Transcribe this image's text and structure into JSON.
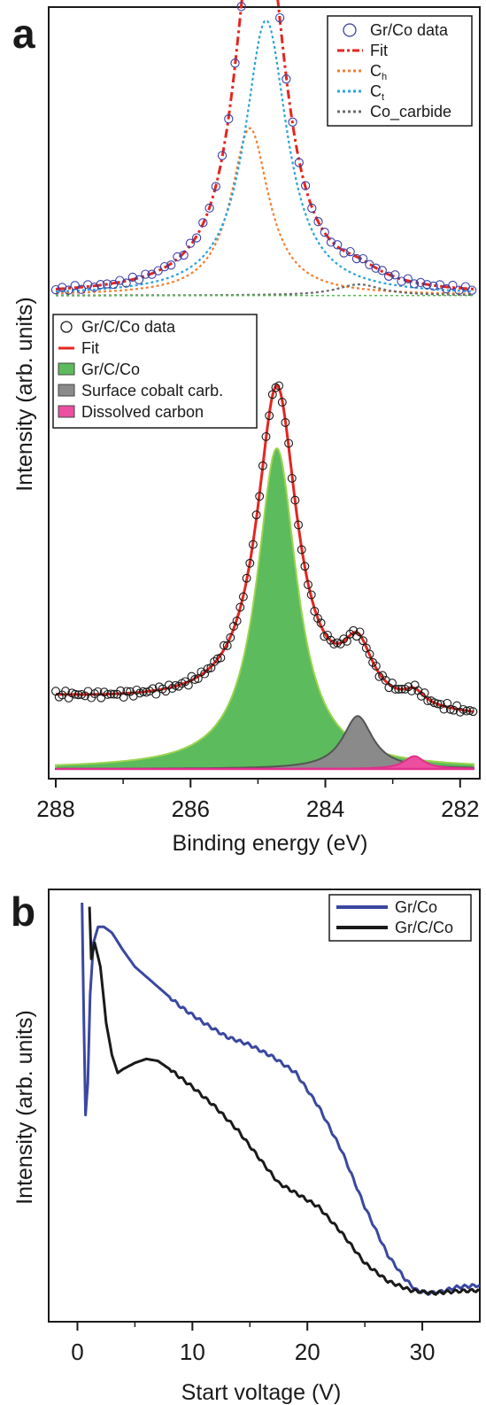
{
  "figure": {
    "panels": [
      {
        "label": "a",
        "ylabel": "Intensity (arb. units)"
      },
      {
        "label": "b",
        "ylabel": "Intensity (arb. units)"
      }
    ]
  },
  "chart_data": [
    {
      "type": "line",
      "panel": "a",
      "xlabel": "Binding energy (eV)",
      "ylabel": "Intensity (arb. units)",
      "xlim": [
        288,
        281.8
      ],
      "x_reversed": true,
      "xticks": [
        288,
        286,
        284,
        282
      ],
      "yticks_shown": false,
      "legend_top": {
        "position": "top-right",
        "entries": [
          {
            "label": "Gr/Co data",
            "style": "open-circle",
            "color": "#3b3fa3"
          },
          {
            "label": "Fit",
            "style": "dash-dot",
            "color": "#e3261f"
          },
          {
            "label": "C",
            "sub": "h",
            "style": "dotted",
            "color": "#f07f32"
          },
          {
            "label": "C",
            "sub": "t",
            "style": "dotted",
            "color": "#2aa4d8"
          },
          {
            "label": "Co_carbide",
            "style": "dotted",
            "color": "#6b6b6b"
          }
        ]
      },
      "legend_bottom": {
        "position": "middle-left",
        "entries": [
          {
            "label": "Gr/C/Co data",
            "style": "open-circle",
            "color": "#1a1a1a"
          },
          {
            "label": "Fit",
            "style": "solid",
            "color": "#e3261f"
          },
          {
            "label": "Gr/C/Co",
            "style": "filled",
            "color": "#5cbb5c"
          },
          {
            "label": "Surface cobalt carb.",
            "style": "filled",
            "color": "#8a8a8a"
          },
          {
            "label": "Dissolved carbon",
            "style": "filled",
            "color": "#ec4fa0"
          }
        ]
      },
      "series_top": {
        "baseline": 0.02,
        "components": [
          {
            "name": "C_h",
            "center": 285.12,
            "width": 0.34,
            "amplitude": 0.45
          },
          {
            "name": "C_t",
            "center": 284.88,
            "width": 0.38,
            "amplitude": 0.74
          },
          {
            "name": "Co_carbide",
            "center": 283.5,
            "width": 0.4,
            "amplitude": 0.03
          }
        ]
      },
      "series_bottom": {
        "data_baseline": 0.18,
        "fill_baseline": 0.0,
        "components": [
          {
            "name": "Gr/C/Co",
            "center": 284.72,
            "width": 0.36,
            "amplitude": 1.0
          },
          {
            "name": "Surface cobalt carb.",
            "center": 283.52,
            "width": 0.27,
            "amplitude": 0.165
          },
          {
            "name": "Dissolved carbon",
            "center": 282.68,
            "width": 0.18,
            "amplitude": 0.04
          }
        ]
      }
    },
    {
      "type": "line",
      "panel": "b",
      "xlabel": "Start voltage (V)",
      "ylabel": "Intensity (arb. units)",
      "xlim": [
        -2.5,
        35
      ],
      "xticks": [
        0,
        10,
        20,
        30
      ],
      "yticks_shown": false,
      "ylim": [
        0,
        1
      ],
      "legend": {
        "position": "top-right"
      },
      "series": [
        {
          "name": "Gr/Co",
          "color": "#3a48a0",
          "x": [
            0.4,
            0.55,
            0.7,
            0.9,
            1.1,
            1.4,
            1.8,
            2.3,
            3,
            4,
            5,
            7,
            9,
            11,
            13,
            15,
            17,
            19,
            21,
            23,
            25,
            27,
            28.5,
            29.5,
            30.5,
            31.5,
            33,
            35
          ],
          "y": [
            0.98,
            0.7,
            0.45,
            0.53,
            0.75,
            0.88,
            0.92,
            0.92,
            0.905,
            0.86,
            0.82,
            0.77,
            0.72,
            0.68,
            0.645,
            0.625,
            0.595,
            0.555,
            0.47,
            0.36,
            0.22,
            0.1,
            0.04,
            0.012,
            0.005,
            0.008,
            0.02,
            0.025
          ]
        },
        {
          "name": "Gr/C/Co",
          "color": "#1a1a1a",
          "x": [
            1.05,
            1.2,
            1.5,
            2,
            2.5,
            3,
            3.5,
            4,
            5,
            6,
            7,
            8,
            10,
            12,
            14,
            16,
            17.5,
            19,
            21,
            23,
            25,
            27,
            29,
            31,
            33,
            35
          ],
          "y": [
            0.97,
            0.84,
            0.88,
            0.82,
            0.68,
            0.6,
            0.555,
            0.565,
            0.58,
            0.59,
            0.585,
            0.565,
            0.52,
            0.47,
            0.41,
            0.335,
            0.28,
            0.255,
            0.22,
            0.155,
            0.08,
            0.035,
            0.012,
            0.005,
            0.01,
            0.012
          ]
        }
      ]
    }
  ]
}
